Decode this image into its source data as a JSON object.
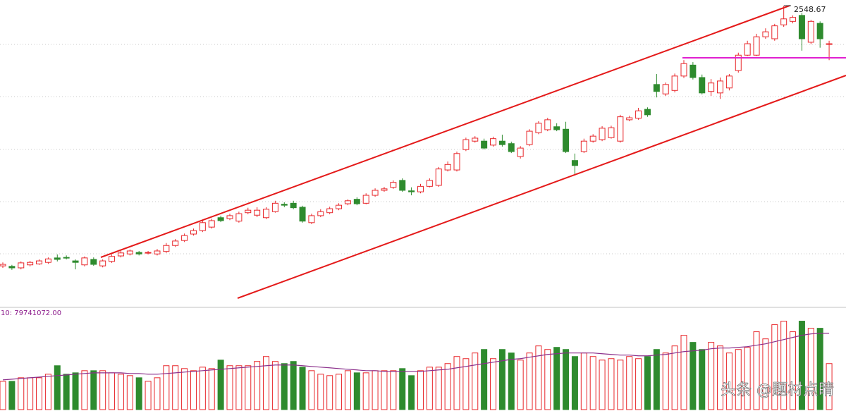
{
  "chart_data": {
    "type": "candlestick",
    "open": [
      2025,
      2024,
      2021,
      2027,
      2029,
      2032,
      2041,
      2042,
      2035,
      2027,
      2038,
      2025,
      2034,
      2045,
      2049,
      2052,
      2051,
      2049,
      2054,
      2066,
      2076,
      2089,
      2096,
      2103,
      2122,
      2120,
      2115,
      2132,
      2127,
      2122,
      2134,
      2149,
      2151,
      2143,
      2112,
      2126,
      2132,
      2140,
      2150,
      2159,
      2151,
      2167,
      2177,
      2183,
      2197,
      2176,
      2174,
      2185,
      2187,
      2218,
      2218,
      2259,
      2276,
      2276,
      2268,
      2276,
      2271,
      2245,
      2269,
      2293,
      2299,
      2305,
      2300,
      2237,
      2255,
      2276,
      2279,
      2283,
      2276,
      2319,
      2322,
      2340,
      2390,
      2371,
      2378,
      2407,
      2429,
      2404,
      2376,
      2373,
      2383,
      2418,
      2449,
      2449,
      2486,
      2482,
      2510,
      2517,
      2529,
      2475,
      2513,
      2471
    ],
    "high": [
      2032,
      2027,
      2034,
      2035,
      2038,
      2042,
      2048,
      2046,
      2038,
      2044,
      2042,
      2038,
      2048,
      2055,
      2058,
      2055,
      2055,
      2059,
      2071,
      2079,
      2090,
      2100,
      2116,
      2120,
      2126,
      2130,
      2134,
      2142,
      2143,
      2143,
      2156,
      2153,
      2156,
      2146,
      2130,
      2139,
      2144,
      2151,
      2159,
      2163,
      2171,
      2181,
      2184,
      2197,
      2201,
      2183,
      2190,
      2201,
      2224,
      2235,
      2255,
      2283,
      2286,
      2281,
      2285,
      2289,
      2275,
      2266,
      2300,
      2316,
      2323,
      2312,
      2315,
      2251,
      2281,
      2290,
      2306,
      2307,
      2329,
      2327,
      2343,
      2344,
      2411,
      2394,
      2412,
      2439,
      2435,
      2410,
      2401,
      2404,
      2411,
      2454,
      2478,
      2492,
      2503,
      2512,
      2548.67,
      2529,
      2534,
      2520,
      2517,
      2478
    ],
    "low": [
      2021,
      2017,
      2018,
      2024,
      2027,
      2029,
      2034,
      2038,
      2018,
      2024,
      2025,
      2022,
      2031,
      2042,
      2046,
      2046,
      2048,
      2046,
      2051,
      2063,
      2073,
      2086,
      2093,
      2100,
      2113,
      2117,
      2112,
      2129,
      2123,
      2119,
      2132,
      2143,
      2139,
      2112,
      2109,
      2123,
      2129,
      2137,
      2147,
      2147,
      2149,
      2164,
      2174,
      2180,
      2174,
      2167,
      2171,
      2183,
      2184,
      2215,
      2215,
      2256,
      2273,
      2259,
      2265,
      2265,
      2252,
      2241,
      2266,
      2290,
      2296,
      2296,
      2252,
      2208,
      2252,
      2273,
      2276,
      2281,
      2273,
      2316,
      2319,
      2325,
      2364,
      2367,
      2374,
      2403,
      2400,
      2370,
      2367,
      2361,
      2378,
      2414,
      2447,
      2447,
      2482,
      2478,
      2506,
      2513,
      2458,
      2471,
      2464,
      2439
    ],
    "close": [
      2028,
      2021,
      2031,
      2032,
      2035,
      2039,
      2038,
      2041,
      2032,
      2041,
      2028,
      2035,
      2044,
      2051,
      2055,
      2049,
      2052,
      2055,
      2066,
      2075,
      2086,
      2096,
      2112,
      2116,
      2116,
      2126,
      2130,
      2137,
      2137,
      2139,
      2151,
      2147,
      2142,
      2115,
      2126,
      2134,
      2140,
      2147,
      2156,
      2150,
      2167,
      2177,
      2180,
      2193,
      2177,
      2174,
      2185,
      2197,
      2220,
      2229,
      2251,
      2279,
      2282,
      2262,
      2281,
      2269,
      2255,
      2262,
      2296,
      2312,
      2319,
      2299,
      2255,
      2227,
      2276,
      2286,
      2302,
      2303,
      2325,
      2323,
      2337,
      2329,
      2376,
      2390,
      2407,
      2432,
      2404,
      2373,
      2393,
      2397,
      2407,
      2449,
      2472,
      2486,
      2496,
      2508,
      2522,
      2525,
      2482,
      2517,
      2482,
      2472
    ],
    "ylim": [
      1950,
      2560
    ],
    "up_color": "#e8262a",
    "down_color": "#2e8b2e",
    "volume": [
      53300000,
      53300000,
      60000000,
      60000000,
      60000000,
      66700000,
      82700000,
      66700000,
      69300000,
      73300000,
      73300000,
      73300000,
      69300000,
      66700000,
      64000000,
      60000000,
      53300000,
      60000000,
      82700000,
      82700000,
      77300000,
      73300000,
      80000000,
      77300000,
      93300000,
      82700000,
      82700000,
      82700000,
      90700000,
      100000000,
      90700000,
      86700000,
      90700000,
      80000000,
      73300000,
      66700000,
      64000000,
      66700000,
      73300000,
      69300000,
      69300000,
      73300000,
      73300000,
      73300000,
      77300000,
      64000000,
      73300000,
      80000000,
      80000000,
      86700000,
      100000000,
      96000000,
      106700000,
      113300000,
      96000000,
      113300000,
      106700000,
      93300000,
      106700000,
      120000000,
      113300000,
      117300000,
      113300000,
      100000000,
      106700000,
      100000000,
      93300000,
      96000000,
      93300000,
      100000000,
      96000000,
      100000000,
      113300000,
      106700000,
      120000000,
      140000000,
      126700000,
      113300000,
      126700000,
      120000000,
      106700000,
      113300000,
      117300000,
      146700000,
      133300000,
      160000000,
      166700000,
      146700000,
      166700000,
      153300000,
      153300000,
      86700000
    ],
    "volume_ma": [
      56000000,
      57300000,
      58700000,
      60000000,
      61300000,
      62700000,
      64000000,
      65300000,
      66700000,
      68000000,
      69300000,
      69300000,
      69300000,
      69300000,
      68000000,
      68000000,
      66700000,
      66700000,
      68000000,
      69300000,
      70700000,
      72000000,
      73300000,
      74700000,
      76000000,
      77300000,
      78700000,
      80000000,
      81300000,
      82700000,
      84000000,
      84000000,
      84000000,
      82700000,
      81300000,
      80000000,
      78700000,
      77300000,
      76000000,
      74700000,
      73300000,
      73300000,
      72000000,
      72000000,
      72000000,
      72000000,
      72000000,
      73300000,
      74700000,
      76000000,
      78700000,
      81300000,
      84000000,
      86700000,
      89300000,
      92000000,
      94700000,
      96000000,
      98700000,
      101300000,
      104000000,
      105300000,
      106700000,
      106700000,
      106700000,
      106700000,
      105300000,
      104000000,
      102700000,
      102700000,
      101300000,
      101300000,
      102700000,
      104000000,
      106700000,
      109300000,
      110700000,
      112000000,
      114700000,
      116000000,
      116000000,
      117300000,
      118700000,
      121300000,
      124000000,
      128000000,
      132000000,
      136000000,
      140000000,
      142700000,
      144000000,
      144000000
    ],
    "volume_ma_color": "#8b2f8b",
    "volume_ylim": [
      0,
      190000000
    ],
    "volume_label": "10: 79741072.00"
  },
  "watermark": "头条 @题材点睛"
}
